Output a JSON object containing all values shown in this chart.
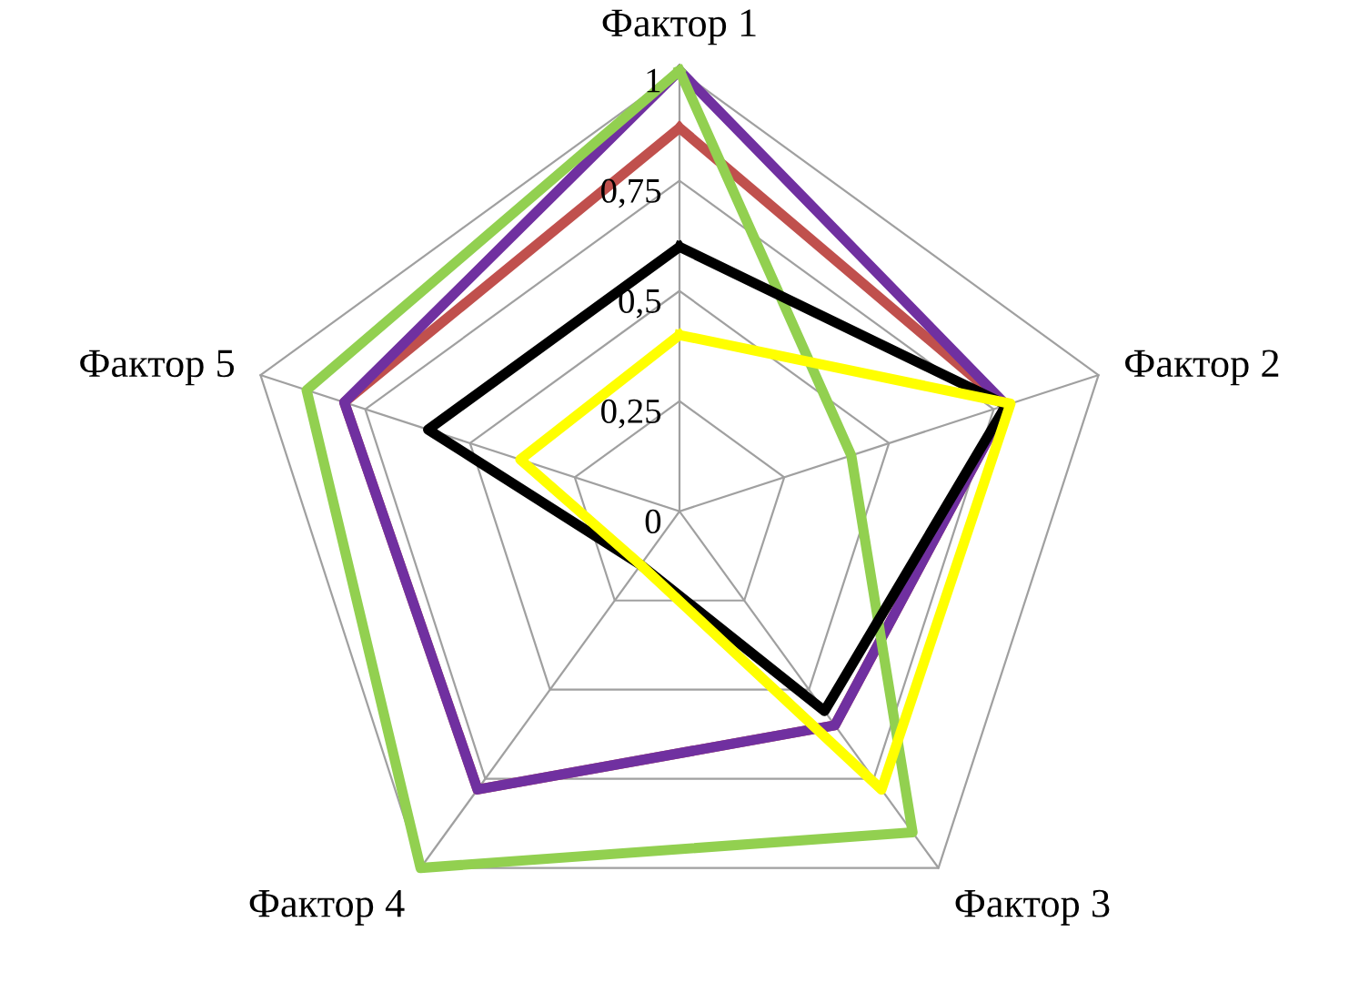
{
  "chart_data": {
    "type": "radar",
    "categories": [
      "Фактор 1",
      "Фактор 2",
      "Фактор 3",
      "Фактор 4",
      "Фактор 5"
    ],
    "ylim": [
      0,
      1
    ],
    "yticks": [
      {
        "value": 0,
        "label": "0"
      },
      {
        "value": 0.25,
        "label": "0,25"
      },
      {
        "value": 0.5,
        "label": "0,5"
      },
      {
        "value": 0.75,
        "label": "0,75"
      },
      {
        "value": 1,
        "label": "1"
      }
    ],
    "grid": true,
    "marker": "none",
    "line_style": "solid",
    "series": [
      {
        "color": "#c0504d",
        "values": [
          0.87,
          0.78,
          0.6,
          0.78,
          0.8
        ]
      },
      {
        "color": "#7030a0",
        "values": [
          1,
          0.78,
          0.6,
          0.78,
          0.8
        ]
      },
      {
        "color": "#92d050",
        "values": [
          1,
          0.41,
          0.9,
          1,
          0.89
        ]
      },
      {
        "color": "#000000",
        "values": [
          0.6,
          0.78,
          0.56,
          0.15,
          0.6
        ]
      },
      {
        "color": "#ffff00",
        "values": [
          0.4,
          0.79,
          0.78,
          0.15,
          0.38
        ]
      }
    ]
  }
}
